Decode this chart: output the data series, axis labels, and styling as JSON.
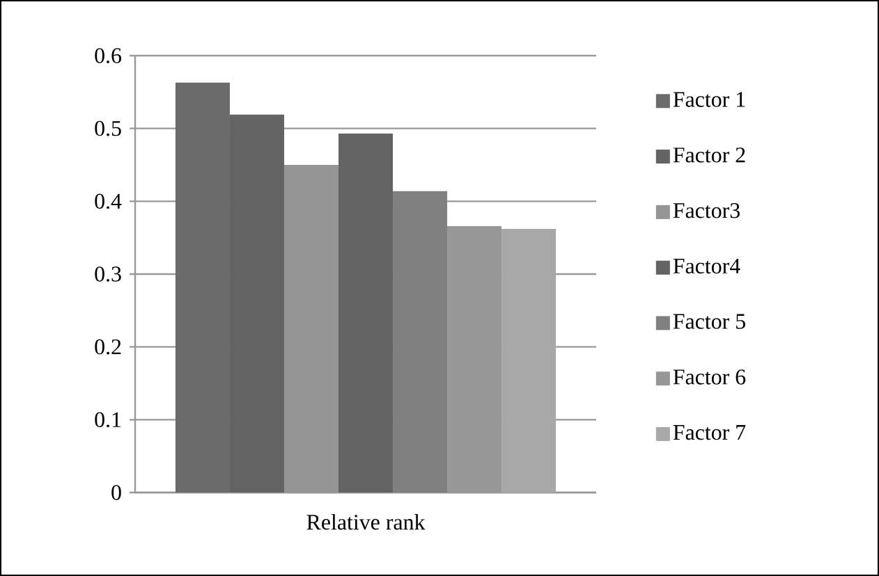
{
  "chart_data": {
    "type": "bar",
    "categories": [
      "Relative rank"
    ],
    "series": [
      {
        "name": "Factor 1",
        "color": "#6b6b6b",
        "values": [
          0.563
        ]
      },
      {
        "name": "Factor 2",
        "color": "#636363",
        "values": [
          0.519
        ]
      },
      {
        "name": "Factor3",
        "color": "#959595",
        "values": [
          0.45
        ]
      },
      {
        "name": "Factor4",
        "color": "#636363",
        "values": [
          0.493
        ]
      },
      {
        "name": "Factor 5",
        "color": "#808080",
        "values": [
          0.414
        ]
      },
      {
        "name": "Factor 6",
        "color": "#979797",
        "values": [
          0.366
        ]
      },
      {
        "name": "Factor 7",
        "color": "#a8a8a8",
        "values": [
          0.362
        ]
      }
    ],
    "ylim": [
      0,
      0.6
    ],
    "yticks": [
      0,
      0.1,
      0.2,
      0.3,
      0.4,
      0.5,
      0.6
    ],
    "grid": "y",
    "legend": "right"
  }
}
